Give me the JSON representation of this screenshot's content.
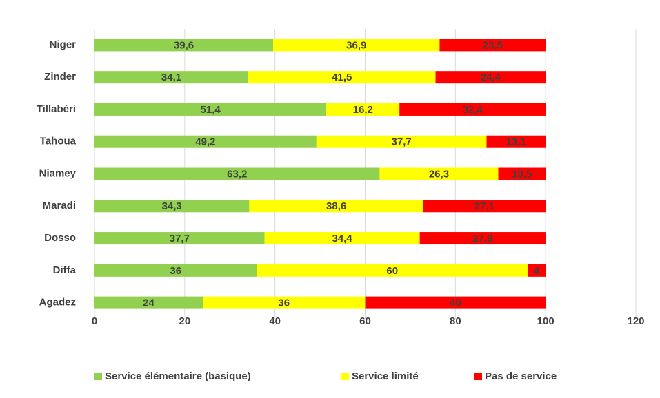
{
  "chart_data": {
    "type": "stacked_bar_horizontal",
    "categories": [
      "Niger",
      "Zinder",
      "Tillabéri",
      "Tahoua",
      "Niamey",
      "Maradi",
      "Dosso",
      "Diffa",
      "Agadez"
    ],
    "series": [
      {
        "name": "Service élémentaire (basique)",
        "color": "#92d050",
        "values": [
          39.6,
          34.1,
          51.4,
          49.2,
          63.2,
          34.3,
          37.7,
          36,
          24
        ],
        "value_labels": [
          "39,6",
          "34,1",
          "51,4",
          "49,2",
          "63,2",
          "34,3",
          "37,7",
          "36",
          "24"
        ]
      },
      {
        "name": "Service limité",
        "color": "#ffff00",
        "values": [
          36.9,
          41.5,
          16.2,
          37.7,
          26.3,
          38.6,
          34.4,
          60,
          36
        ],
        "value_labels": [
          "36,9",
          "41,5",
          "16,2",
          "37,7",
          "26,3",
          "38,6",
          "34,4",
          "60",
          "36"
        ]
      },
      {
        "name": "Pas de service",
        "color": "#ff0000",
        "values": [
          23.5,
          24.4,
          32.4,
          13.1,
          10.5,
          27.1,
          27.9,
          4,
          40
        ],
        "value_labels": [
          "23,5",
          "24,4",
          "32,4",
          "13,1",
          "10,5",
          "27,1",
          "27,9",
          "4",
          "40"
        ]
      }
    ],
    "xlim": [
      0,
      120
    ],
    "xticks": [
      0,
      20,
      40,
      60,
      80,
      100,
      120
    ],
    "grid": true,
    "legend": "bottom"
  }
}
